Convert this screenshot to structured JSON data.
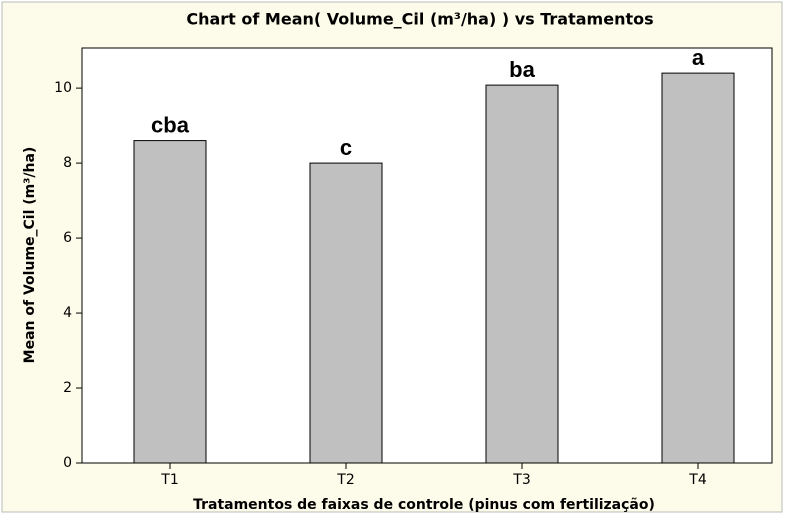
{
  "chart_data": {
    "type": "bar",
    "title": "Chart of Mean( Volume_Cil (m³/ha) ) vs Tratamentos",
    "x_label": "Tratamentos de faixas de controle (pinus com fertilização)",
    "y_label": "Mean of Volume_Cil (m³/ha)",
    "categories": [
      "T1",
      "T2",
      "T3",
      "T4"
    ],
    "values": [
      8.6,
      8.0,
      10.08,
      10.4
    ],
    "annotations": [
      "cba",
      "c",
      "ba",
      "a"
    ],
    "color": "#c0c0c0",
    "ylim": [
      0,
      11.07
    ],
    "yticks": [
      0,
      2,
      4,
      6,
      8,
      10
    ],
    "grid": false
  }
}
